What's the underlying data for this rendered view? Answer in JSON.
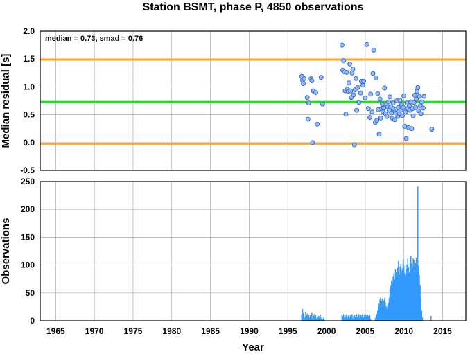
{
  "chart_data": [
    {
      "type": "scatter",
      "title": "Station BSMT, phase P, 4850 observations",
      "xlabel": "",
      "ylabel": "Median residual [s]",
      "xlim": [
        1963,
        2018
      ],
      "ylim": [
        -0.5,
        2.0
      ],
      "yticks": [
        "-0.5",
        "0.0",
        "0.5",
        "1.0",
        "1.5",
        "2.0"
      ],
      "grid": true,
      "annotation": "median = 0.73, smad = 0.76",
      "hlines": [
        {
          "y": 1.49,
          "color": "#ffa726"
        },
        {
          "y": 0.73,
          "color": "#1ee01e"
        },
        {
          "y": -0.02,
          "color": "#ffa726"
        }
      ],
      "point_color": "#8cbcff",
      "point_edge": "#3a62c0",
      "points": [
        [
          1996.8,
          1.19
        ],
        [
          1996.9,
          1.12
        ],
        [
          1997.0,
          1.06
        ],
        [
          1997.1,
          1.15
        ],
        [
          1997.5,
          0.81
        ],
        [
          1997.6,
          0.42
        ],
        [
          1997.7,
          0.71
        ],
        [
          1998.0,
          1.15
        ],
        [
          1998.1,
          1.11
        ],
        [
          1998.2,
          0.0
        ],
        [
          1998.3,
          0.93
        ],
        [
          1998.6,
          0.9
        ],
        [
          1998.8,
          0.33
        ],
        [
          1999.3,
          1.17
        ],
        [
          1999.5,
          0.69
        ],
        [
          2002.0,
          1.75
        ],
        [
          2002.1,
          1.3
        ],
        [
          2002.2,
          1.47
        ],
        [
          2002.3,
          1.27
        ],
        [
          2002.4,
          0.93
        ],
        [
          2002.5,
          0.51
        ],
        [
          2002.6,
          1.26
        ],
        [
          2002.7,
          0.96
        ],
        [
          2002.8,
          0.92
        ],
        [
          2002.9,
          1.07
        ],
        [
          2003.0,
          1.41
        ],
        [
          2003.1,
          0.93
        ],
        [
          2003.2,
          0.81
        ],
        [
          2003.3,
          1.25
        ],
        [
          2003.4,
          1.32
        ],
        [
          2003.5,
          0.86
        ],
        [
          2003.6,
          -0.04
        ],
        [
          2003.7,
          0.95
        ],
        [
          2003.8,
          1.15
        ],
        [
          2003.9,
          0.58
        ],
        [
          2004.0,
          0.99
        ],
        [
          2004.2,
          0.72
        ],
        [
          2004.4,
          0.89
        ],
        [
          2004.5,
          1.1
        ],
        [
          2004.7,
          1.03
        ],
        [
          2004.8,
          1.1
        ],
        [
          2005.0,
          0.8
        ],
        [
          2005.2,
          1.76
        ],
        [
          2005.4,
          0.61
        ],
        [
          2005.6,
          0.45
        ],
        [
          2005.7,
          0.87
        ],
        [
          2005.9,
          0.55
        ],
        [
          2006.0,
          1.24
        ],
        [
          2006.1,
          1.66
        ],
        [
          2006.3,
          0.36
        ],
        [
          2006.4,
          1.16
        ],
        [
          2006.5,
          0.4
        ],
        [
          2006.6,
          0.88
        ],
        [
          2006.7,
          0.59
        ],
        [
          2006.8,
          0.15
        ],
        [
          2006.9,
          0.78
        ],
        [
          2007.0,
          0.44
        ],
        [
          2007.1,
          0.61
        ],
        [
          2007.2,
          0.69
        ],
        [
          2007.3,
          0.55
        ],
        [
          2007.4,
          0.62
        ],
        [
          2007.5,
          0.98
        ],
        [
          2007.6,
          0.52
        ],
        [
          2007.7,
          0.69
        ],
        [
          2007.8,
          0.47
        ],
        [
          2007.9,
          0.64
        ],
        [
          2008.0,
          0.73
        ],
        [
          2008.1,
          0.58
        ],
        [
          2008.2,
          0.82
        ],
        [
          2008.3,
          0.64
        ],
        [
          2008.4,
          0.53
        ],
        [
          2008.5,
          0.44
        ],
        [
          2008.6,
          0.71
        ],
        [
          2008.7,
          0.61
        ],
        [
          2008.8,
          0.41
        ],
        [
          2008.9,
          0.55
        ],
        [
          2009.0,
          0.6
        ],
        [
          2009.1,
          0.75
        ],
        [
          2009.2,
          0.47
        ],
        [
          2009.3,
          0.63
        ],
        [
          2009.4,
          0.52
        ],
        [
          2009.5,
          0.76
        ],
        [
          2009.6,
          0.58
        ],
        [
          2009.7,
          0.68
        ],
        [
          2009.8,
          0.48
        ],
        [
          2009.9,
          0.63
        ],
        [
          2010.0,
          0.84
        ],
        [
          2010.1,
          0.29
        ],
        [
          2010.2,
          0.55
        ],
        [
          2010.3,
          0.07
        ],
        [
          2010.4,
          0.71
        ],
        [
          2010.5,
          0.61
        ],
        [
          2010.6,
          0.27
        ],
        [
          2010.7,
          0.66
        ],
        [
          2010.8,
          0.58
        ],
        [
          2010.9,
          0.73
        ],
        [
          2011.0,
          0.25
        ],
        [
          2011.1,
          0.61
        ],
        [
          2011.2,
          0.48
        ],
        [
          2011.3,
          0.72
        ],
        [
          2011.4,
          0.85
        ],
        [
          2011.5,
          0.63
        ],
        [
          2011.6,
          0.78
        ],
        [
          2011.7,
          0.92
        ],
        [
          2011.8,
          0.99
        ],
        [
          2011.9,
          0.57
        ],
        [
          2012.0,
          0.83
        ],
        [
          2012.1,
          0.66
        ],
        [
          2012.2,
          0.52
        ],
        [
          2012.3,
          0.73
        ],
        [
          2012.5,
          0.62
        ],
        [
          2012.6,
          0.83
        ],
        [
          2013.6,
          0.24
        ]
      ]
    },
    {
      "type": "bar",
      "title": "",
      "xlabel": "Year",
      "ylabel": "Observations",
      "xlim": [
        1963,
        2018
      ],
      "ylim": [
        0,
        250
      ],
      "xticks": [
        "1965",
        "1970",
        "1975",
        "1980",
        "1985",
        "1990",
        "1995",
        "2000",
        "2005",
        "2010",
        "2015"
      ],
      "yticks": [
        "0",
        "50",
        "100",
        "150",
        "200",
        "250"
      ],
      "grid": true,
      "bar_color": "#3399ff",
      "bar_width_years": 0.083,
      "bars": [
        [
          1996.8,
          12
        ],
        [
          1996.9,
          21
        ],
        [
          1997.0,
          14
        ],
        [
          1997.1,
          8
        ],
        [
          1997.2,
          5
        ],
        [
          1997.3,
          16
        ],
        [
          1997.4,
          9
        ],
        [
          1997.5,
          13
        ],
        [
          1997.6,
          4
        ],
        [
          1997.7,
          11
        ],
        [
          1997.8,
          6
        ],
        [
          1997.9,
          10
        ],
        [
          1998.0,
          7
        ],
        [
          1998.1,
          14
        ],
        [
          1998.2,
          3
        ],
        [
          1998.3,
          9
        ],
        [
          1998.4,
          12
        ],
        [
          1998.5,
          6
        ],
        [
          1998.6,
          10
        ],
        [
          1998.7,
          4
        ],
        [
          1998.8,
          8
        ],
        [
          1998.9,
          5
        ],
        [
          1999.0,
          9
        ],
        [
          1999.1,
          6
        ],
        [
          1999.2,
          11
        ],
        [
          1999.3,
          4
        ],
        [
          1999.4,
          7
        ],
        [
          1999.5,
          3
        ],
        [
          1999.6,
          5
        ],
        [
          1999.7,
          2
        ],
        [
          2002.0,
          11
        ],
        [
          2002.1,
          8
        ],
        [
          2002.2,
          12
        ],
        [
          2002.3,
          6
        ],
        [
          2002.4,
          10
        ],
        [
          2002.5,
          7
        ],
        [
          2002.6,
          12
        ],
        [
          2002.7,
          5
        ],
        [
          2002.8,
          9
        ],
        [
          2002.9,
          11
        ],
        [
          2003.0,
          6
        ],
        [
          2003.1,
          10
        ],
        [
          2003.2,
          8
        ],
        [
          2003.3,
          12
        ],
        [
          2003.4,
          4
        ],
        [
          2003.5,
          9
        ],
        [
          2003.6,
          11
        ],
        [
          2003.7,
          7
        ],
        [
          2003.8,
          10
        ],
        [
          2003.9,
          12
        ],
        [
          2004.0,
          6
        ],
        [
          2004.1,
          9
        ],
        [
          2004.2,
          12
        ],
        [
          2004.3,
          5
        ],
        [
          2004.4,
          11
        ],
        [
          2004.5,
          8
        ],
        [
          2004.6,
          12
        ],
        [
          2004.7,
          10
        ],
        [
          2004.8,
          6
        ],
        [
          2004.9,
          11
        ],
        [
          2005.0,
          12
        ],
        [
          2005.1,
          10
        ],
        [
          2005.2,
          8
        ],
        [
          2005.3,
          11
        ],
        [
          2005.4,
          9
        ],
        [
          2005.5,
          6
        ],
        [
          2005.6,
          10
        ],
        [
          2005.7,
          3
        ],
        [
          2006.3,
          5
        ],
        [
          2006.4,
          8
        ],
        [
          2006.5,
          12
        ],
        [
          2006.6,
          18
        ],
        [
          2006.7,
          25
        ],
        [
          2006.8,
          31
        ],
        [
          2006.9,
          38
        ],
        [
          2007.0,
          42
        ],
        [
          2007.1,
          35
        ],
        [
          2007.2,
          40
        ],
        [
          2007.3,
          28
        ],
        [
          2007.4,
          36
        ],
        [
          2007.5,
          41
        ],
        [
          2007.6,
          33
        ],
        [
          2007.7,
          26
        ],
        [
          2007.8,
          22
        ],
        [
          2007.9,
          28
        ],
        [
          2008.0,
          32
        ],
        [
          2008.1,
          41
        ],
        [
          2008.2,
          55
        ],
        [
          2008.3,
          63
        ],
        [
          2008.4,
          72
        ],
        [
          2008.5,
          68
        ],
        [
          2008.6,
          79
        ],
        [
          2008.7,
          85
        ],
        [
          2008.8,
          74
        ],
        [
          2008.9,
          92
        ],
        [
          2009.0,
          88
        ],
        [
          2009.1,
          78
        ],
        [
          2009.2,
          95
        ],
        [
          2009.3,
          107
        ],
        [
          2009.4,
          83
        ],
        [
          2009.5,
          97
        ],
        [
          2009.6,
          102
        ],
        [
          2009.7,
          89
        ],
        [
          2009.8,
          94
        ],
        [
          2009.9,
          110
        ],
        [
          2010.0,
          98
        ],
        [
          2010.1,
          86
        ],
        [
          2010.2,
          82
        ],
        [
          2010.3,
          93
        ],
        [
          2010.4,
          101
        ],
        [
          2010.5,
          112
        ],
        [
          2010.6,
          96
        ],
        [
          2010.7,
          87
        ],
        [
          2010.8,
          105
        ],
        [
          2010.9,
          116
        ],
        [
          2011.0,
          103
        ],
        [
          2011.1,
          98
        ],
        [
          2011.2,
          112
        ],
        [
          2011.3,
          109
        ],
        [
          2011.4,
          95
        ],
        [
          2011.5,
          104
        ],
        [
          2011.6,
          113
        ],
        [
          2011.7,
          100
        ],
        [
          2011.8,
          241
        ],
        [
          2011.9,
          98
        ],
        [
          2012.0,
          82
        ],
        [
          2012.1,
          64
        ],
        [
          2012.2,
          41
        ],
        [
          2012.3,
          18
        ],
        [
          2012.4,
          6
        ],
        [
          2013.5,
          9
        ]
      ]
    }
  ]
}
